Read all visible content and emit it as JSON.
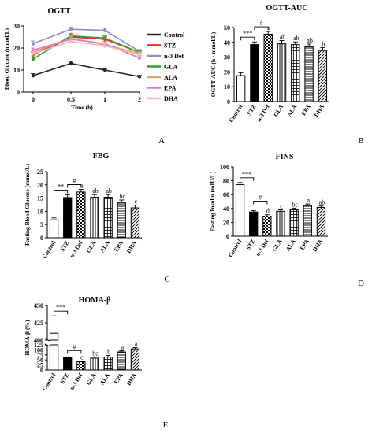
{
  "chart_data": [
    {
      "panel": "A",
      "type": "line",
      "title": "OGTT",
      "xlabel": "Time (h)",
      "ylabel": "Blood Glucose (mmol/L)",
      "x": [
        0,
        0.5,
        1,
        2
      ],
      "x_ticks": [
        "0",
        "0.5",
        "1",
        "2"
      ],
      "ylim": [
        0,
        30
      ],
      "y_ticks": [
        "0",
        "10",
        "20",
        "30"
      ],
      "legend_position": "right",
      "series": [
        {
          "name": "Control",
          "color": "#222222",
          "values": [
            7.5,
            13,
            10,
            7
          ],
          "errors": [
            0.9,
            0.9,
            0.6,
            0.6
          ]
        },
        {
          "name": "STZ",
          "color": "#ff1a1a",
          "values": [
            17,
            25,
            24,
            18
          ],
          "errors": [
            1.2,
            1.2,
            1.0,
            0.8
          ]
        },
        {
          "name": "n-3 Def",
          "color": "#8d8dcc",
          "values": [
            22,
            28.5,
            28,
            18.5
          ],
          "errors": [
            1.2,
            1.0,
            1.0,
            0.8
          ]
        },
        {
          "name": "GLA",
          "color": "#2ca02c",
          "values": [
            15,
            25.5,
            24.5,
            18
          ],
          "errors": [
            1.0,
            1.2,
            1.0,
            0.8
          ]
        },
        {
          "name": "ALA",
          "color": "#d6a86e",
          "values": [
            18,
            24.5,
            21.5,
            17.5
          ],
          "errors": [
            1.0,
            1.0,
            1.0,
            0.8
          ]
        },
        {
          "name": "EPA",
          "color": "#e377c2",
          "values": [
            19,
            24,
            22,
            15.5
          ],
          "errors": [
            1.0,
            1.0,
            1.0,
            1.0
          ]
        },
        {
          "name": "DHA",
          "color": "#f4b8b8",
          "values": [
            17.5,
            23,
            21,
            17
          ],
          "errors": [
            1.0,
            1.0,
            1.0,
            0.8
          ]
        }
      ]
    },
    {
      "panel": "B",
      "type": "bar",
      "title": "OGTT-AUC",
      "ylabel": "OGTT-AUC (h · mmol/L)",
      "categories": [
        "Control",
        "STZ",
        "n-3 Def",
        "GLA",
        "ALA",
        "EPA",
        "DHA"
      ],
      "values": [
        17.5,
        38.5,
        45.5,
        39,
        38.5,
        37,
        34.5
      ],
      "errors": [
        2,
        1.8,
        1.8,
        2.2,
        1.8,
        1.8,
        2
      ],
      "letters": [
        "",
        "",
        "a",
        "ab",
        "ab",
        "ab",
        "b"
      ],
      "brackets": [
        {
          "from": 0,
          "to": 1,
          "label": "***"
        },
        {
          "from": 1,
          "to": 2,
          "label": "#"
        }
      ],
      "ylim": [
        0,
        50
      ],
      "y_ticks": [
        "0",
        "10",
        "20",
        "30",
        "40",
        "50"
      ]
    },
    {
      "panel": "C",
      "type": "bar",
      "title": "FBG",
      "ylabel": "Fasting Blood Glucose (mmol/L)",
      "categories": [
        "Control",
        "STZ",
        "n-3 Def",
        "GLA",
        "ALA",
        "EPA",
        "DHA"
      ],
      "values": [
        6.8,
        15.2,
        17.3,
        15.3,
        15.3,
        13.3,
        11.3
      ],
      "errors": [
        0.7,
        1.0,
        1.0,
        1.0,
        1.0,
        1.0,
        1.0
      ],
      "letters": [
        "",
        "",
        "a",
        "ab",
        "ab",
        "bc",
        "c"
      ],
      "brackets": [
        {
          "from": 0,
          "to": 1,
          "label": "**"
        },
        {
          "from": 1,
          "to": 2,
          "label": "#"
        }
      ],
      "ylim": [
        0,
        25
      ],
      "y_ticks": [
        "0",
        "5",
        "10",
        "15",
        "20",
        "25"
      ]
    },
    {
      "panel": "D",
      "type": "bar",
      "title": "FINS",
      "ylabel": "Fasting Insulin (mIU/L)",
      "categories": [
        "Control",
        "STZ",
        "n-3 Def",
        "GLA",
        "ALA",
        "EPA",
        "DHA"
      ],
      "values": [
        74.5,
        35,
        29,
        36,
        38,
        44.5,
        41.5
      ],
      "errors": [
        3,
        2,
        2,
        2,
        2.5,
        2,
        2
      ],
      "letters": [
        "",
        "",
        "d",
        "c",
        "bc",
        "a",
        "ab"
      ],
      "brackets": [
        {
          "from": 0,
          "to": 1,
          "label": "***"
        },
        {
          "from": 1,
          "to": 2,
          "label": "#"
        }
      ],
      "ylim": [
        0,
        100
      ],
      "y_ticks": [
        "0",
        "20",
        "40",
        "60",
        "80",
        "100"
      ]
    },
    {
      "panel": "E",
      "type": "bar",
      "title": "HOMA-β",
      "ylabel": "HOMA-β (%)",
      "categories": [
        "Control",
        "STZ",
        "n-3 Def",
        "GLA",
        "ALA",
        "EPA",
        "DHA"
      ],
      "values": [
        410,
        61,
        41,
        59,
        64,
        90,
        105
      ],
      "errors": [
        25,
        4,
        4,
        6,
        8,
        6,
        6
      ],
      "letters": [
        "",
        "",
        "c",
        "bc",
        "b",
        "a",
        "a"
      ],
      "brackets": [
        {
          "from": 0,
          "to": 1,
          "label": "***"
        },
        {
          "from": 1,
          "to": 2,
          "label": "#"
        }
      ],
      "axis_break": [
        120,
        400
      ],
      "ylim": [
        0,
        450
      ],
      "y_ticks": [
        "0",
        "25",
        "50",
        "75",
        "100",
        "125",
        "400",
        "425",
        "450"
      ]
    }
  ]
}
